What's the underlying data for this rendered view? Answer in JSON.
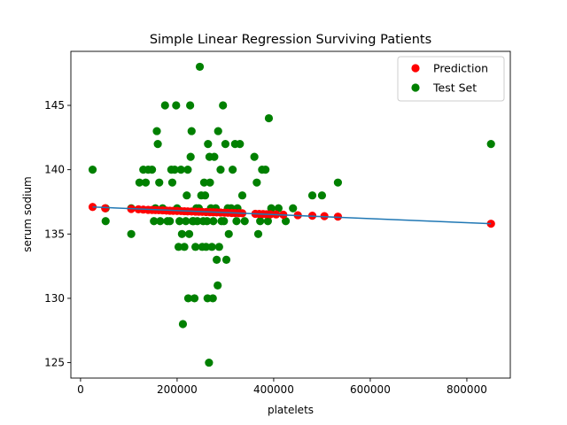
{
  "chart_data": {
    "type": "scatter",
    "title": "Simple Linear Regression Surviving Patients",
    "xlabel": "platelets",
    "ylabel": "serum sodium",
    "xlim": [
      -20000,
      890000
    ],
    "ylim": [
      123.8,
      149.2
    ],
    "xticks": [
      0,
      200000,
      400000,
      600000,
      800000
    ],
    "xtick_labels": [
      "0",
      "200000",
      "400000",
      "600000",
      "800000"
    ],
    "yticks": [
      125,
      130,
      135,
      140,
      145
    ],
    "ytick_labels": [
      "125",
      "130",
      "135",
      "140",
      "145"
    ],
    "grid": false,
    "legend_position": "top-right",
    "colors": {
      "prediction": "#ff0000",
      "test": "#008000",
      "line": "#1f77b4"
    },
    "series": [
      {
        "name": "Prediction",
        "kind": "scatter",
        "color": "#ff0000",
        "points": [
          [
            25000,
            137.1
          ],
          [
            51000,
            137.0
          ],
          [
            105000,
            136.95
          ],
          [
            120000,
            136.92
          ],
          [
            130000,
            136.9
          ],
          [
            140000,
            136.88
          ],
          [
            148000,
            136.87
          ],
          [
            155000,
            136.86
          ],
          [
            162000,
            136.85
          ],
          [
            170000,
            136.84
          ],
          [
            178000,
            136.82
          ],
          [
            185000,
            136.81
          ],
          [
            192000,
            136.8
          ],
          [
            200000,
            136.79
          ],
          [
            208000,
            136.78
          ],
          [
            215000,
            136.77
          ],
          [
            222000,
            136.76
          ],
          [
            230000,
            136.75
          ],
          [
            238000,
            136.74
          ],
          [
            245000,
            136.73
          ],
          [
            252000,
            136.72
          ],
          [
            260000,
            136.71
          ],
          [
            268000,
            136.7
          ],
          [
            275000,
            136.69
          ],
          [
            282000,
            136.68
          ],
          [
            290000,
            136.67
          ],
          [
            298000,
            136.66
          ],
          [
            305000,
            136.65
          ],
          [
            313000,
            136.64
          ],
          [
            320000,
            136.63
          ],
          [
            328000,
            136.62
          ],
          [
            335000,
            136.61
          ],
          [
            362000,
            136.57
          ],
          [
            370000,
            136.56
          ],
          [
            378000,
            136.55
          ],
          [
            385000,
            136.54
          ],
          [
            393000,
            136.53
          ],
          [
            405000,
            136.52
          ],
          [
            420000,
            136.5
          ],
          [
            450000,
            136.46
          ],
          [
            480000,
            136.42
          ],
          [
            505000,
            136.39
          ],
          [
            533000,
            136.35
          ],
          [
            850000,
            135.8
          ]
        ]
      },
      {
        "name": "Test Set",
        "kind": "scatter",
        "color": "#008000",
        "points": [
          [
            25000,
            140
          ],
          [
            52000,
            136
          ],
          [
            52000,
            137
          ],
          [
            105000,
            135
          ],
          [
            105000,
            137
          ],
          [
            122000,
            139
          ],
          [
            130000,
            140
          ],
          [
            135000,
            139
          ],
          [
            140000,
            140
          ],
          [
            148000,
            140
          ],
          [
            152000,
            136
          ],
          [
            155000,
            137
          ],
          [
            158000,
            143
          ],
          [
            160000,
            142
          ],
          [
            163000,
            139
          ],
          [
            165000,
            136
          ],
          [
            170000,
            137
          ],
          [
            175000,
            145
          ],
          [
            180000,
            136
          ],
          [
            185000,
            136
          ],
          [
            188000,
            140
          ],
          [
            190000,
            139
          ],
          [
            195000,
            140
          ],
          [
            198000,
            145
          ],
          [
            200000,
            137
          ],
          [
            203000,
            134
          ],
          [
            205000,
            136
          ],
          [
            208000,
            140
          ],
          [
            210000,
            135
          ],
          [
            212000,
            128
          ],
          [
            215000,
            134
          ],
          [
            218000,
            136
          ],
          [
            220000,
            138
          ],
          [
            222000,
            140
          ],
          [
            223000,
            130
          ],
          [
            225000,
            135
          ],
          [
            227000,
            145
          ],
          [
            228000,
            141
          ],
          [
            230000,
            143
          ],
          [
            232000,
            136
          ],
          [
            234000,
            136
          ],
          [
            236000,
            130
          ],
          [
            238000,
            134
          ],
          [
            240000,
            137
          ],
          [
            242000,
            136
          ],
          [
            245000,
            137
          ],
          [
            247000,
            148
          ],
          [
            250000,
            138
          ],
          [
            252000,
            134
          ],
          [
            254000,
            136
          ],
          [
            256000,
            139
          ],
          [
            258000,
            138
          ],
          [
            260000,
            134
          ],
          [
            262000,
            136
          ],
          [
            263000,
            130
          ],
          [
            264000,
            142
          ],
          [
            266000,
            125
          ],
          [
            267000,
            141
          ],
          [
            268000,
            139
          ],
          [
            270000,
            137
          ],
          [
            272000,
            134
          ],
          [
            274000,
            130
          ],
          [
            275000,
            136
          ],
          [
            277000,
            141
          ],
          [
            280000,
            137
          ],
          [
            282000,
            133
          ],
          [
            284000,
            131
          ],
          [
            285000,
            143
          ],
          [
            287000,
            134
          ],
          [
            290000,
            140
          ],
          [
            292000,
            136
          ],
          [
            295000,
            145
          ],
          [
            297000,
            136
          ],
          [
            300000,
            142
          ],
          [
            302000,
            133
          ],
          [
            305000,
            137
          ],
          [
            307000,
            135
          ],
          [
            312000,
            137
          ],
          [
            315000,
            140
          ],
          [
            320000,
            142
          ],
          [
            323000,
            136
          ],
          [
            325000,
            137
          ],
          [
            330000,
            142
          ],
          [
            335000,
            138
          ],
          [
            340000,
            136
          ],
          [
            360000,
            141
          ],
          [
            365000,
            139
          ],
          [
            368000,
            135
          ],
          [
            372000,
            136
          ],
          [
            376000,
            140
          ],
          [
            383000,
            140
          ],
          [
            388000,
            136
          ],
          [
            390000,
            144
          ],
          [
            395000,
            137
          ],
          [
            410000,
            137
          ],
          [
            425000,
            136
          ],
          [
            440000,
            137
          ],
          [
            480000,
            138
          ],
          [
            500000,
            138
          ],
          [
            533000,
            139
          ],
          [
            850000,
            142
          ]
        ]
      },
      {
        "name": "",
        "kind": "line",
        "color": "#1f77b4",
        "points": [
          [
            25000,
            137.1
          ],
          [
            850000,
            135.8
          ]
        ]
      }
    ],
    "legend": [
      {
        "label": "Prediction",
        "color": "#ff0000"
      },
      {
        "label": "Test Set",
        "color": "#008000"
      }
    ]
  }
}
